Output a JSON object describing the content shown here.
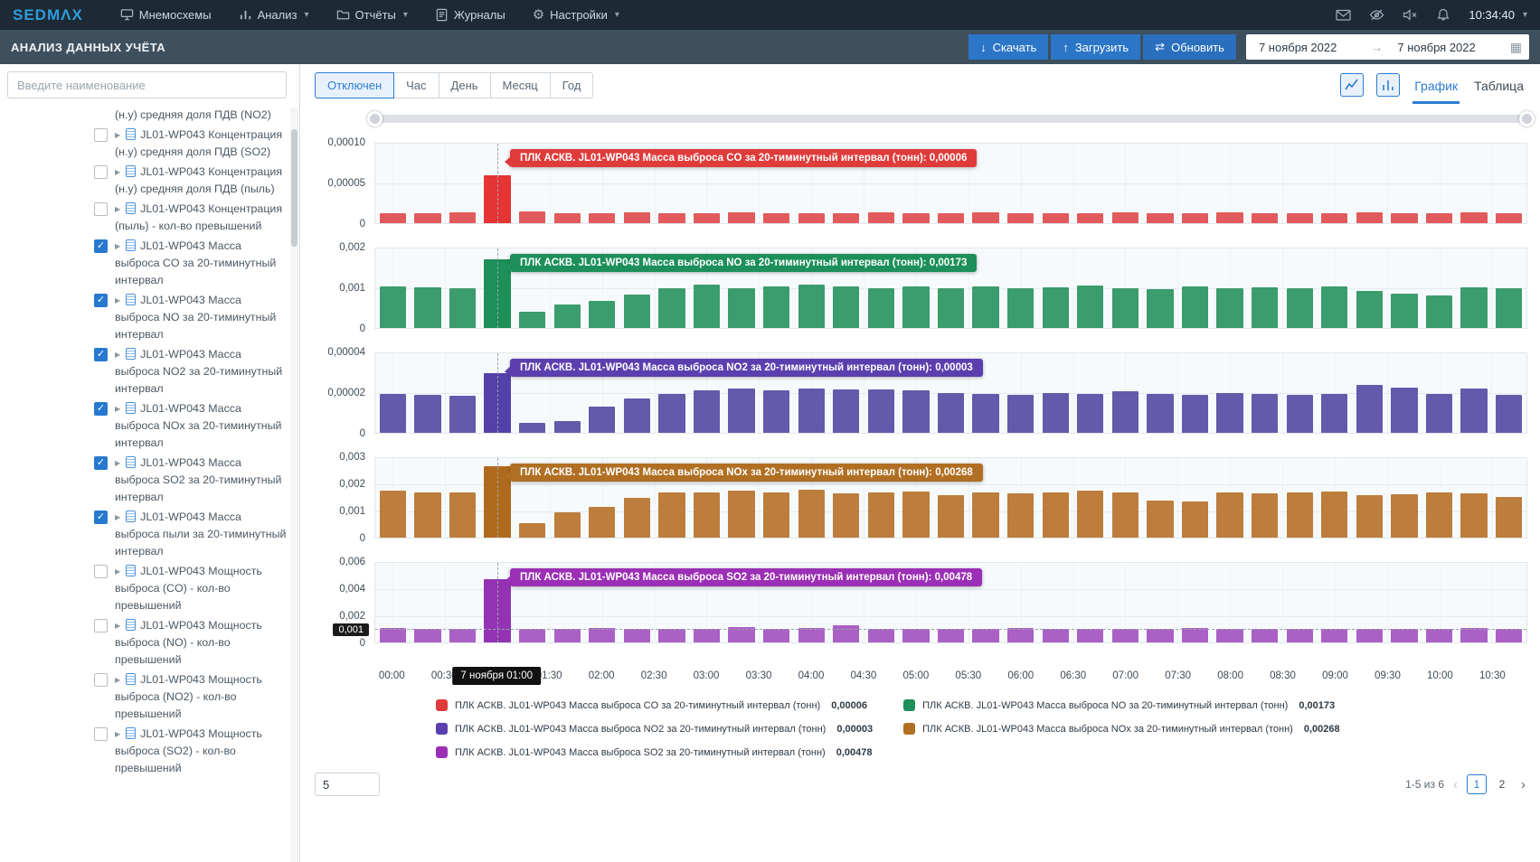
{
  "icons": {
    "check": "✓",
    "expander": "▶",
    "download": "↓",
    "upload": "↑",
    "refresh": "⇄",
    "calendar": "▦",
    "arrow_right": "→",
    "chevron_down": "▾",
    "prev_page": "‹",
    "next_page": "›",
    "gear": "⚙"
  },
  "topnav": {
    "logo": "SEDMΛX",
    "menu": [
      {
        "label": "Мнемосхемы",
        "icon": "mnemoscheme-icon",
        "dropdown": false
      },
      {
        "label": "Анализ",
        "icon": "analysis-icon",
        "dropdown": true
      },
      {
        "label": "Отчёты",
        "icon": "reports-icon",
        "dropdown": true
      },
      {
        "label": "Журналы",
        "icon": "journals-icon",
        "dropdown": false
      },
      {
        "label": "Настройки",
        "icon": "settings-icon",
        "dropdown": true
      }
    ],
    "clock": "10:34:40"
  },
  "header": {
    "title": "АНАЛИЗ ДАННЫХ УЧЁТА",
    "download": "Скачать",
    "upload": "Загрузить",
    "refresh": "Обновить",
    "date_from": "7 ноября 2022",
    "date_to": "7 ноября 2022"
  },
  "sidebar": {
    "search_placeholder": "Введите наименование",
    "overflow_item": "(н.у) средняя доля ПДВ (NO2)",
    "items": [
      {
        "label": "JL01-WP043 Концентрация (н.у) средняя доля ПДВ (SO2)",
        "checked": false
      },
      {
        "label": "JL01-WP043 Концентрация (н.у) средняя доля ПДВ (пыль)",
        "checked": false
      },
      {
        "label": "JL01-WP043 Концентрация (пыль) - кол-во превышений",
        "checked": false
      },
      {
        "label": "JL01-WP043 Масса выброса CO за 20-тиминутный интервал",
        "checked": true
      },
      {
        "label": "JL01-WP043 Масса выброса NO за 20-тиминутный интервал",
        "checked": true
      },
      {
        "label": "JL01-WP043 Масса выброса NO2 за 20-тиминутный интервал",
        "checked": true
      },
      {
        "label": "JL01-WP043 Масса выброса NOx за 20-тиминутный интервал",
        "checked": true
      },
      {
        "label": "JL01-WP043 Масса выброса SO2 за 20-тиминутный интервал",
        "checked": true
      },
      {
        "label": "JL01-WP043 Масса выброса пыли за 20-тиминутный интервал",
        "checked": true
      },
      {
        "label": "JL01-WP043 Мощность выброса (CO) - кол-во превышений",
        "checked": false
      },
      {
        "label": "JL01-WP043 Мощность выброса (NO) - кол-во превышений",
        "checked": false
      },
      {
        "label": "JL01-WP043 Мощность выброса (NO2) - кол-во превышений",
        "checked": false
      },
      {
        "label": "JL01-WP043 Мощность выброса (SO2) - кол-во превышений",
        "checked": false
      }
    ]
  },
  "toolbar": {
    "intervals": [
      "Отключен",
      "Час",
      "День",
      "Месяц",
      "Год"
    ],
    "active_interval": "Отключен",
    "view_graph": "График",
    "view_table": "Таблица"
  },
  "footer": {
    "page_size": "5",
    "range_info": "1-5 из 6",
    "pages": [
      "1",
      "2"
    ],
    "active_page": "1"
  },
  "chart_data": {
    "type": "bar",
    "x_times": [
      "00:00",
      "00:20",
      "00:40",
      "01:00",
      "01:20",
      "01:40",
      "02:00",
      "02:20",
      "02:40",
      "03:00",
      "03:20",
      "03:40",
      "04:00",
      "04:20",
      "04:40",
      "05:00",
      "05:20",
      "05:40",
      "06:00",
      "06:20",
      "06:40",
      "07:00",
      "07:20",
      "07:40",
      "08:00",
      "08:20",
      "08:40",
      "09:00",
      "09:20",
      "09:40",
      "10:00",
      "10:20",
      "10:40"
    ],
    "x_tick_labels": [
      "00:00",
      "00:30",
      "01:00",
      "01:30",
      "02:00",
      "02:30",
      "03:00",
      "03:30",
      "04:00",
      "04:30",
      "05:00",
      "05:30",
      "06:00",
      "06:30",
      "07:00",
      "07:30",
      "08:00",
      "08:30",
      "09:00",
      "09:30",
      "10:00",
      "10:30"
    ],
    "cursor": {
      "time": "01:00",
      "index": 3,
      "x_label": "7 ноября 01:00",
      "y_label": "0,001",
      "y_value": 0.001
    },
    "charts": [
      {
        "name": "CO",
        "color": "#e25a5c",
        "highlight_color": "#e53434",
        "tooltip_color": "#e03b3b",
        "tooltip": "ПЛК АСКВ. JL01-WP043 Масса выброса CO за 20-тиминутный интервал (тонн): 0,00006",
        "ymax": 0.0001,
        "yticks": [
          {
            "label": "0,00010",
            "value": 0.0001
          },
          {
            "label": "0,00005",
            "value": 5e-05
          },
          {
            "label": "0",
            "value": 0
          }
        ],
        "values": [
          1.3e-05,
          1.3e-05,
          1.4e-05,
          6e-05,
          1.5e-05,
          1.3e-05,
          1.3e-05,
          1.4e-05,
          1.3e-05,
          1.3e-05,
          1.4e-05,
          1.3e-05,
          1.3e-05,
          1.3e-05,
          1.4e-05,
          1.3e-05,
          1.3e-05,
          1.4e-05,
          1.3e-05,
          1.3e-05,
          1.3e-05,
          1.4e-05,
          1.3e-05,
          1.3e-05,
          1.4e-05,
          1.3e-05,
          1.3e-05,
          1.3e-05,
          1.4e-05,
          1.3e-05,
          1.3e-05,
          1.4e-05,
          1.3e-05
        ]
      },
      {
        "name": "NO",
        "color": "#3b9c6d",
        "highlight_color": "#1d8f58",
        "tooltip_color": "#1c8f5a",
        "tooltip": "ПЛК АСКВ. JL01-WP043 Масса выброса NO за 20-тиминутный интервал (тонн): 0,00173",
        "ymax": 0.002,
        "yticks": [
          {
            "label": "0,002",
            "value": 0.002
          },
          {
            "label": "0,001",
            "value": 0.001
          },
          {
            "label": "0",
            "value": 0
          }
        ],
        "values": [
          0.00105,
          0.00103,
          0.001,
          0.00173,
          0.00042,
          0.00058,
          0.00068,
          0.00083,
          0.001,
          0.00108,
          0.00101,
          0.00104,
          0.0011,
          0.00104,
          0.001,
          0.00104,
          0.00099,
          0.00105,
          0.001,
          0.00103,
          0.00107,
          0.00101,
          0.00097,
          0.00105,
          0.001,
          0.00103,
          0.001,
          0.00104,
          0.00094,
          0.00086,
          0.00081,
          0.00103,
          0.00099
        ]
      },
      {
        "name": "NO2",
        "color": "#6459ab",
        "highlight_color": "#5340a8",
        "tooltip_color": "#5b3fae",
        "tooltip": "ПЛК АСКВ. JL01-WP043 Масса выброса NO2 за 20-тиминутный интервал (тонн): 0,00003",
        "ymax": 4e-05,
        "yticks": [
          {
            "label": "0,00004",
            "value": 4e-05
          },
          {
            "label": "0,00002",
            "value": 2e-05
          },
          {
            "label": "0",
            "value": 0
          }
        ],
        "values": [
          1.95e-05,
          1.9e-05,
          1.85e-05,
          3e-05,
          5e-06,
          6e-06,
          1.3e-05,
          1.75e-05,
          1.95e-05,
          2.15e-05,
          2.25e-05,
          2.13e-05,
          2.24e-05,
          2.16e-05,
          2.2e-05,
          2.14e-05,
          2e-05,
          1.96e-05,
          1.9e-05,
          2e-05,
          1.96e-05,
          2.1e-05,
          1.96e-05,
          1.9e-05,
          2e-05,
          1.95e-05,
          1.9e-05,
          1.96e-05,
          2.4e-05,
          2.28e-05,
          1.96e-05,
          2.24e-05,
          1.9e-05
        ]
      },
      {
        "name": "NOx",
        "color": "#bd7d3c",
        "highlight_color": "#b06a1e",
        "tooltip_color": "#b06f22",
        "tooltip": "ПЛК АСКВ. JL01-WP043 Масса выброса NOx за 20-тиминутный интервал (тонн): 0,00268",
        "ymax": 0.003,
        "yticks": [
          {
            "label": "0,003",
            "value": 0.003
          },
          {
            "label": "0,002",
            "value": 0.002
          },
          {
            "label": "0,001",
            "value": 0.001
          },
          {
            "label": "0",
            "value": 0
          }
        ],
        "values": [
          0.00176,
          0.0017,
          0.00172,
          0.00268,
          0.00055,
          0.00094,
          0.00116,
          0.0015,
          0.00172,
          0.0017,
          0.00179,
          0.0017,
          0.00182,
          0.00166,
          0.00171,
          0.00173,
          0.00161,
          0.0017,
          0.00168,
          0.00172,
          0.00176,
          0.0017,
          0.00141,
          0.00136,
          0.0017,
          0.00168,
          0.00171,
          0.00173,
          0.00159,
          0.00164,
          0.0017,
          0.00167,
          0.00155
        ]
      },
      {
        "name": "SO2",
        "color": "#aa60c5",
        "highlight_color": "#9333b3",
        "tooltip_color": "#9b2fb5",
        "tooltip": "ПЛК АСКВ. JL01-WP043 Масса выброса SO2 за 20-тиминутный интервал (тонн): 0,00478",
        "ymax": 0.006,
        "yticks": [
          {
            "label": "0,006",
            "value": 0.006
          },
          {
            "label": "0,004",
            "value": 0.004
          },
          {
            "label": "0,002",
            "value": 0.002
          },
          {
            "label": "0",
            "value": 0
          }
        ],
        "values": [
          0.00106,
          0.001,
          0.00103,
          0.00478,
          0.00099,
          0.00104,
          0.0011,
          0.00101,
          0.00105,
          0.001,
          0.00116,
          0.001,
          0.00106,
          0.00131,
          0.001,
          0.00105,
          0.001,
          0.00103,
          0.00106,
          0.001,
          0.00104,
          0.001,
          0.00099,
          0.00106,
          0.001,
          0.00102,
          0.001,
          0.00105,
          0.00099,
          0.001,
          0.00103,
          0.00106,
          0.001
        ]
      }
    ],
    "legend": [
      {
        "color": "#e03b3b",
        "label": "ПЛК АСКВ. JL01-WP043 Масса выброса CO за 20-тиминутный интервал (тонн)",
        "value": "0,00006"
      },
      {
        "color": "#1c8f5a",
        "label": "ПЛК АСКВ. JL01-WP043 Масса выброса NO за 20-тиминутный интервал (тонн)",
        "value": "0,00173"
      },
      {
        "color": "#5b3fae",
        "label": "ПЛК АСКВ. JL01-WP043 Масса выброса NO2 за 20-тиминутный интервал (тонн)",
        "value": "0,00003"
      },
      {
        "color": "#b06f22",
        "label": "ПЛК АСКВ. JL01-WP043 Масса выброса NOx за 20-тиминутный интервал (тонн)",
        "value": "0,00268"
      },
      {
        "color": "#9b2fb5",
        "label": "ПЛК АСКВ. JL01-WP043 Масса выброса SO2 за 20-тиминутный интервал (тонн)",
        "value": "0,00478"
      }
    ]
  }
}
